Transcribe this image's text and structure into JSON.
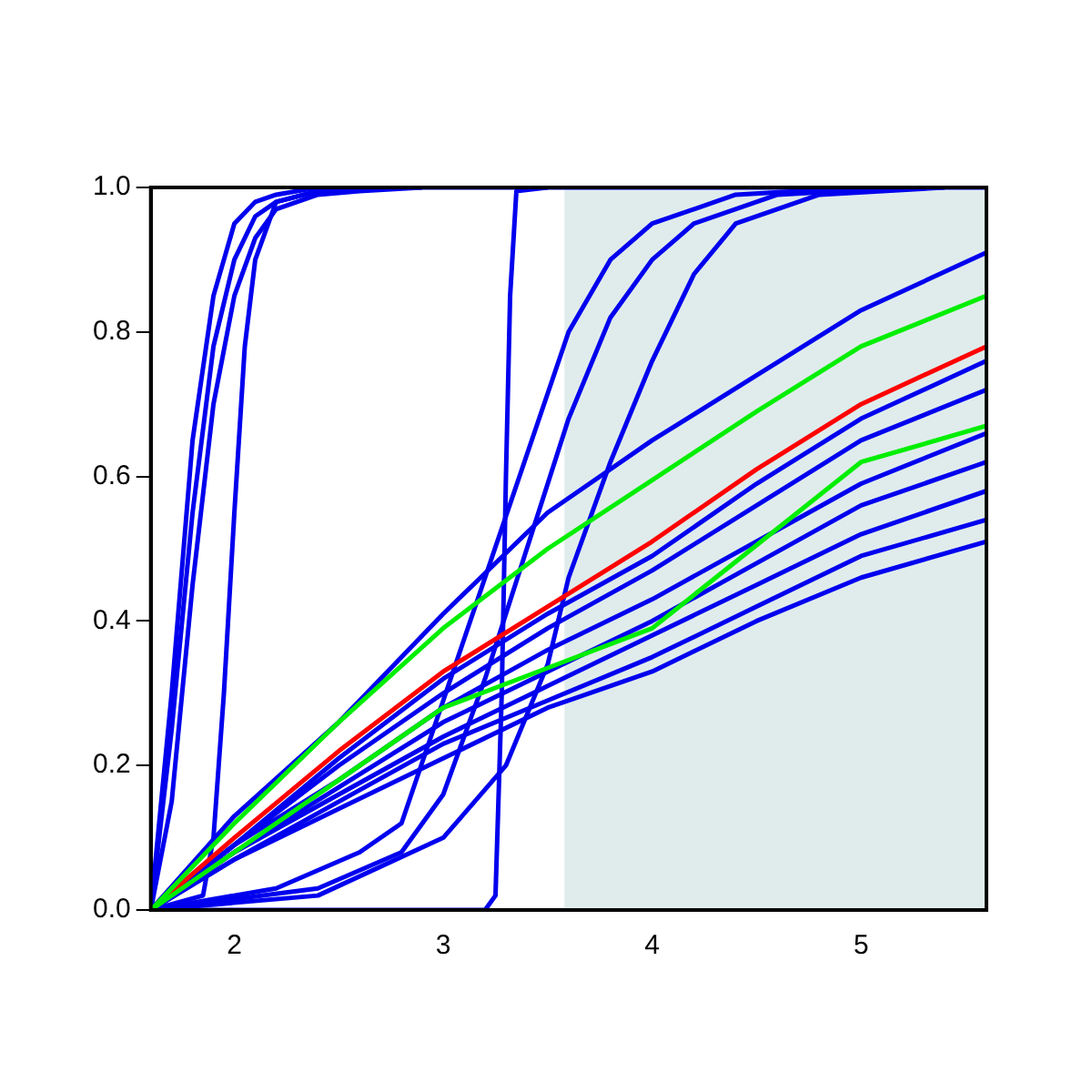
{
  "chart_data": {
    "type": "line",
    "xlim": [
      1.6,
      5.6
    ],
    "ylim": [
      0,
      1
    ],
    "xticks": [
      2,
      3,
      4,
      5
    ],
    "yticks": [
      {
        "value": 0,
        "label": "0.0"
      },
      {
        "value": 0.2,
        "label": "0.2"
      },
      {
        "value": 0.4,
        "label": "0.4"
      },
      {
        "value": 0.6,
        "label": "0.6"
      },
      {
        "value": 0.8,
        "label": "0.8"
      },
      {
        "value": 1,
        "label": "1.0"
      }
    ],
    "grid": false,
    "legend": false,
    "marker": "none",
    "line_style": "solid",
    "bands": [
      {
        "axis": "x",
        "from": 3.58,
        "to": 5.6,
        "color": "#e0ecec"
      }
    ],
    "series": [
      {
        "color": "#0000ee",
        "x": [
          1.6,
          1.7,
          1.8,
          1.9,
          2.0,
          2.1,
          2.2,
          2.4,
          5.6
        ],
        "values": [
          0,
          0.3,
          0.65,
          0.85,
          0.95,
          0.98,
          0.99,
          1,
          1
        ]
      },
      {
        "color": "#0000ee",
        "x": [
          1.6,
          1.7,
          1.8,
          1.9,
          2.0,
          2.1,
          2.2,
          2.4,
          2.7
        ],
        "values": [
          0,
          0.25,
          0.55,
          0.78,
          0.9,
          0.96,
          0.98,
          0.995,
          1
        ]
      },
      {
        "color": "#0000ee",
        "x": [
          1.6,
          1.7,
          1.8,
          1.9,
          2.0,
          2.1,
          2.2,
          2.4,
          2.6,
          2.9
        ],
        "values": [
          0,
          0.15,
          0.45,
          0.7,
          0.85,
          0.93,
          0.97,
          0.99,
          0.995,
          1
        ]
      },
      {
        "color": "#0000ee",
        "x": [
          1.6,
          1.85,
          1.9,
          1.95,
          2.0,
          2.05,
          2.1,
          2.2,
          2.4,
          2.6
        ],
        "values": [
          0,
          0.02,
          0.1,
          0.3,
          0.55,
          0.78,
          0.9,
          0.98,
          0.995,
          1
        ]
      },
      {
        "color": "#0000ee",
        "x": [
          1.6,
          3.2,
          3.25,
          3.28,
          3.3,
          3.32,
          3.35,
          3.5
        ],
        "values": [
          0,
          0,
          0.02,
          0.3,
          0.6,
          0.85,
          0.995,
          1
        ]
      },
      {
        "color": "#0000ee",
        "x": [
          1.6,
          2.2,
          2.6,
          2.8,
          3.0,
          3.2,
          3.4,
          3.6,
          3.8,
          4.0,
          4.4,
          5.0
        ],
        "values": [
          0,
          0.03,
          0.08,
          0.12,
          0.29,
          0.46,
          0.63,
          0.8,
          0.9,
          0.95,
          0.99,
          1
        ]
      },
      {
        "color": "#0000ee",
        "x": [
          1.6,
          2.4,
          2.8,
          3.0,
          3.2,
          3.4,
          3.6,
          3.8,
          4.0,
          4.2,
          4.6,
          5.2
        ],
        "values": [
          0,
          0.03,
          0.08,
          0.16,
          0.32,
          0.5,
          0.68,
          0.82,
          0.9,
          0.95,
          0.99,
          1
        ]
      },
      {
        "color": "#0000ee",
        "x": [
          1.6,
          2.4,
          3.0,
          3.3,
          3.5,
          3.6,
          3.8,
          4.0,
          4.2,
          4.4,
          4.8,
          5.4
        ],
        "values": [
          0,
          0.02,
          0.1,
          0.2,
          0.34,
          0.46,
          0.62,
          0.76,
          0.88,
          0.95,
          0.99,
          1
        ]
      },
      {
        "color": "#0000ee",
        "x": [
          1.6,
          2.0,
          2.5,
          3.0,
          3.5,
          4.0,
          4.5,
          5.0,
          5.6
        ],
        "values": [
          0,
          0.13,
          0.26,
          0.41,
          0.55,
          0.65,
          0.74,
          0.83,
          0.91
        ]
      },
      {
        "color": "#0000ee",
        "x": [
          1.6,
          2.0,
          2.5,
          3.0,
          3.5,
          4.0,
          4.5,
          5.0,
          5.6
        ],
        "values": [
          0,
          0.09,
          0.21,
          0.32,
          0.41,
          0.49,
          0.59,
          0.68,
          0.76
        ]
      },
      {
        "color": "#0000ee",
        "x": [
          1.6,
          2.0,
          2.5,
          3.0,
          3.5,
          4.0,
          4.5,
          5.0,
          5.6
        ],
        "values": [
          0,
          0.09,
          0.2,
          0.3,
          0.39,
          0.47,
          0.56,
          0.65,
          0.72
        ]
      },
      {
        "color": "#0000ee",
        "x": [
          1.6,
          2.0,
          2.5,
          3.0,
          3.5,
          4.0,
          4.5,
          5.0,
          5.6
        ],
        "values": [
          0,
          0.09,
          0.18,
          0.28,
          0.36,
          0.43,
          0.51,
          0.59,
          0.66
        ]
      },
      {
        "color": "#0000ee",
        "x": [
          1.6,
          2.0,
          2.5,
          3.0,
          3.5,
          4.0,
          4.5,
          5.0,
          5.6
        ],
        "values": [
          0,
          0.08,
          0.17,
          0.26,
          0.33,
          0.4,
          0.48,
          0.56,
          0.62
        ]
      },
      {
        "color": "#0000ee",
        "x": [
          1.6,
          2.0,
          2.5,
          3.0,
          3.5,
          4.0,
          4.5,
          5.0,
          5.6
        ],
        "values": [
          0,
          0.08,
          0.16,
          0.24,
          0.31,
          0.38,
          0.45,
          0.52,
          0.58
        ]
      },
      {
        "color": "#0000ee",
        "x": [
          1.6,
          2.0,
          2.5,
          3.0,
          3.5,
          4.0,
          4.5,
          5.0,
          5.6
        ],
        "values": [
          0,
          0.07,
          0.15,
          0.23,
          0.29,
          0.35,
          0.42,
          0.49,
          0.54
        ]
      },
      {
        "color": "#0000ee",
        "x": [
          1.6,
          2.0,
          2.5,
          3.0,
          3.5,
          4.0,
          4.5,
          5.0,
          5.6
        ],
        "values": [
          0,
          0.07,
          0.14,
          0.21,
          0.28,
          0.33,
          0.4,
          0.46,
          0.51
        ]
      },
      {
        "color": "#ff0000",
        "x": [
          1.6,
          2.0,
          2.5,
          3.0,
          3.5,
          4.0,
          4.5,
          5.0,
          5.6
        ],
        "values": [
          0,
          0.1,
          0.22,
          0.33,
          0.42,
          0.51,
          0.61,
          0.7,
          0.78
        ]
      },
      {
        "color": "#00ee00",
        "x": [
          1.6,
          2.0,
          2.5,
          3.0,
          3.5,
          4.0,
          4.5,
          5.0,
          5.6
        ],
        "values": [
          0,
          0.12,
          0.26,
          0.39,
          0.5,
          0.595,
          0.69,
          0.78,
          0.85
        ]
      },
      {
        "color": "#00ee00",
        "x": [
          1.6,
          2.0,
          2.5,
          3.0,
          3.5,
          4.0,
          4.5,
          5.0,
          5.6
        ],
        "values": [
          0,
          0.08,
          0.18,
          0.28,
          0.335,
          0.39,
          0.505,
          0.62,
          0.67
        ]
      }
    ]
  }
}
